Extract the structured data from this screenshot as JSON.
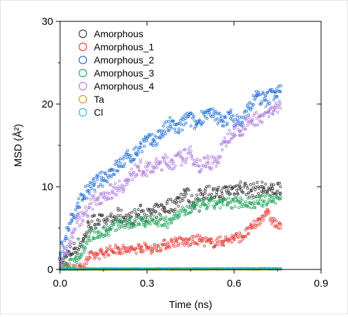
{
  "chart_data": {
    "type": "scatter",
    "title": "",
    "xlabel": "Time (ns)",
    "ylabel": "MSD (Å²)",
    "xlim": [
      0,
      0.9
    ],
    "ylim": [
      0,
      30
    ],
    "xticks": [
      0.0,
      0.3,
      0.6,
      0.9
    ],
    "xtick_labels": [
      "0.0",
      "0.3",
      "0.6",
      "0.9"
    ],
    "yticks": [
      0,
      10,
      20,
      30
    ],
    "ytick_labels": [
      "0",
      "10",
      "20",
      "30"
    ],
    "grid": false,
    "legend_position": "top-left",
    "marker": "open-circle",
    "series": [
      {
        "name": "Amorphous",
        "color": "#3a3a3a",
        "x": [
          0.0,
          0.02,
          0.05,
          0.08,
          0.1,
          0.13,
          0.16,
          0.2,
          0.24,
          0.28,
          0.3,
          0.33,
          0.36,
          0.4,
          0.43,
          0.46,
          0.5,
          0.54,
          0.58,
          0.62,
          0.66,
          0.7,
          0.73,
          0.76
        ],
        "y": [
          0.5,
          1.5,
          2.5,
          3.5,
          5.5,
          6.0,
          5.5,
          6.5,
          6.0,
          7.0,
          6.5,
          7.0,
          7.5,
          8.0,
          9.5,
          8.0,
          9.5,
          9.0,
          9.5,
          10.0,
          9.5,
          9.8,
          9.5,
          10.0
        ]
      },
      {
        "name": "Amorphous_1",
        "color": "#e8413c",
        "x": [
          0.0,
          0.05,
          0.08,
          0.1,
          0.13,
          0.16,
          0.2,
          0.24,
          0.28,
          0.32,
          0.36,
          0.4,
          0.44,
          0.48,
          0.52,
          0.56,
          0.6,
          0.63,
          0.66,
          0.69,
          0.71,
          0.73,
          0.76
        ],
        "y": [
          0.1,
          0.1,
          0.3,
          1.5,
          1.8,
          2.2,
          2.5,
          2.3,
          2.7,
          2.5,
          3.0,
          3.4,
          3.3,
          3.6,
          3.2,
          3.4,
          3.8,
          4.0,
          5.0,
          6.0,
          7.0,
          6.0,
          5.0
        ]
      },
      {
        "name": "Amorphous_2",
        "color": "#1f6fd9",
        "x": [
          0.0,
          0.02,
          0.04,
          0.06,
          0.08,
          0.1,
          0.12,
          0.15,
          0.18,
          0.2,
          0.23,
          0.26,
          0.29,
          0.32,
          0.35,
          0.38,
          0.41,
          0.44,
          0.47,
          0.5,
          0.53,
          0.56,
          0.59,
          0.62,
          0.65,
          0.68,
          0.71,
          0.74,
          0.76
        ],
        "y": [
          2.0,
          4.0,
          6.0,
          7.5,
          9.0,
          9.5,
          10.5,
          11.0,
          12.0,
          12.5,
          13.5,
          14.0,
          15.5,
          15.5,
          16.5,
          17.5,
          17.0,
          18.5,
          17.5,
          19.0,
          18.5,
          18.0,
          18.5,
          17.5,
          19.5,
          21.0,
          20.5,
          21.5,
          21.5
        ]
      },
      {
        "name": "Amorphous_3",
        "color": "#27a65f",
        "x": [
          0.0,
          0.03,
          0.05,
          0.08,
          0.1,
          0.13,
          0.16,
          0.2,
          0.24,
          0.28,
          0.3,
          0.33,
          0.36,
          0.4,
          0.43,
          0.46,
          0.5,
          0.54,
          0.58,
          0.62,
          0.66,
          0.7,
          0.73,
          0.76
        ],
        "y": [
          0.2,
          0.4,
          1.0,
          2.5,
          4.0,
          4.5,
          4.5,
          5.5,
          5.5,
          6.0,
          5.8,
          6.0,
          5.5,
          6.5,
          7.0,
          7.5,
          7.8,
          8.0,
          8.0,
          8.2,
          8.0,
          8.3,
          8.5,
          8.8
        ]
      },
      {
        "name": "Amorphous_4",
        "color": "#b07fe0",
        "x": [
          0.0,
          0.02,
          0.04,
          0.06,
          0.08,
          0.1,
          0.12,
          0.15,
          0.18,
          0.2,
          0.23,
          0.25,
          0.27,
          0.3,
          0.33,
          0.36,
          0.39,
          0.42,
          0.45,
          0.48,
          0.51,
          0.54,
          0.57,
          0.6,
          0.63,
          0.66,
          0.69,
          0.72,
          0.74,
          0.76
        ],
        "y": [
          0.5,
          2.0,
          4.0,
          6.0,
          6.5,
          7.5,
          8.5,
          9.0,
          9.5,
          10.0,
          10.5,
          11.5,
          12.5,
          12.0,
          12.5,
          13.0,
          13.0,
          13.5,
          14.0,
          12.5,
          13.0,
          13.0,
          15.5,
          17.0,
          17.0,
          18.0,
          18.5,
          19.0,
          19.5,
          19.5
        ]
      },
      {
        "name": "Ta",
        "color": "#c9a020",
        "x": [
          0.0,
          0.1,
          0.2,
          0.3,
          0.4,
          0.5,
          0.6,
          0.7,
          0.76
        ],
        "y": [
          0.0,
          0.02,
          0.03,
          0.03,
          0.04,
          0.04,
          0.05,
          0.05,
          0.05
        ]
      },
      {
        "name": "Cl",
        "color": "#2bc0c4",
        "x": [
          0.0,
          0.1,
          0.2,
          0.3,
          0.4,
          0.5,
          0.6,
          0.7,
          0.76
        ],
        "y": [
          0.05,
          0.07,
          0.08,
          0.08,
          0.09,
          0.09,
          0.1,
          0.1,
          0.1
        ]
      }
    ]
  }
}
